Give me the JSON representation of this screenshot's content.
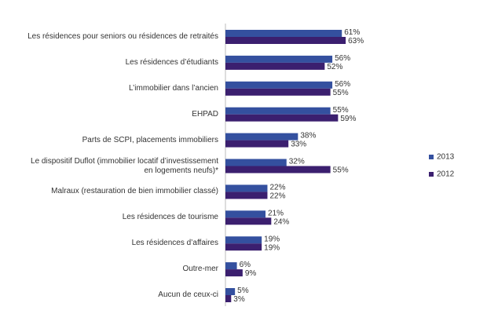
{
  "chart_data": {
    "type": "hbar",
    "categories": [
      "Les résidences pour seniors ou résidences de retraités",
      "Les résidences d’étudiants",
      "L’immobilier dans l’ancien",
      "EHPAD",
      "Parts de SCPI, placements immobiliers",
      "Le dispositif Duflot (immobilier locatif d’investissement en logements neufs)*",
      "Malraux (restauration de bien immobilier classé)",
      "Les résidences de tourisme",
      "Les résidences d’affaires",
      "Outre-mer",
      "Aucun de ceux-ci"
    ],
    "series": [
      {
        "name": "2013",
        "color": "#34509f",
        "values": [
          61,
          56,
          56,
          55,
          38,
          32,
          22,
          21,
          19,
          6,
          5
        ],
        "value_labels": [
          "61%",
          "56%",
          "56%",
          "55%",
          "38%",
          "32%",
          "22%",
          "21%",
          "19%",
          "6%",
          "5%"
        ]
      },
      {
        "name": "2012",
        "color": "#3b1f6f",
        "values": [
          63,
          52,
          55,
          59,
          33,
          55,
          22,
          24,
          19,
          9,
          3
        ],
        "value_labels": [
          "63%",
          "52%",
          "55%",
          "59%",
          "33%",
          "55%",
          "22%",
          "24%",
          "19%",
          "9%",
          "3%"
        ]
      }
    ],
    "legend": "right"
  }
}
